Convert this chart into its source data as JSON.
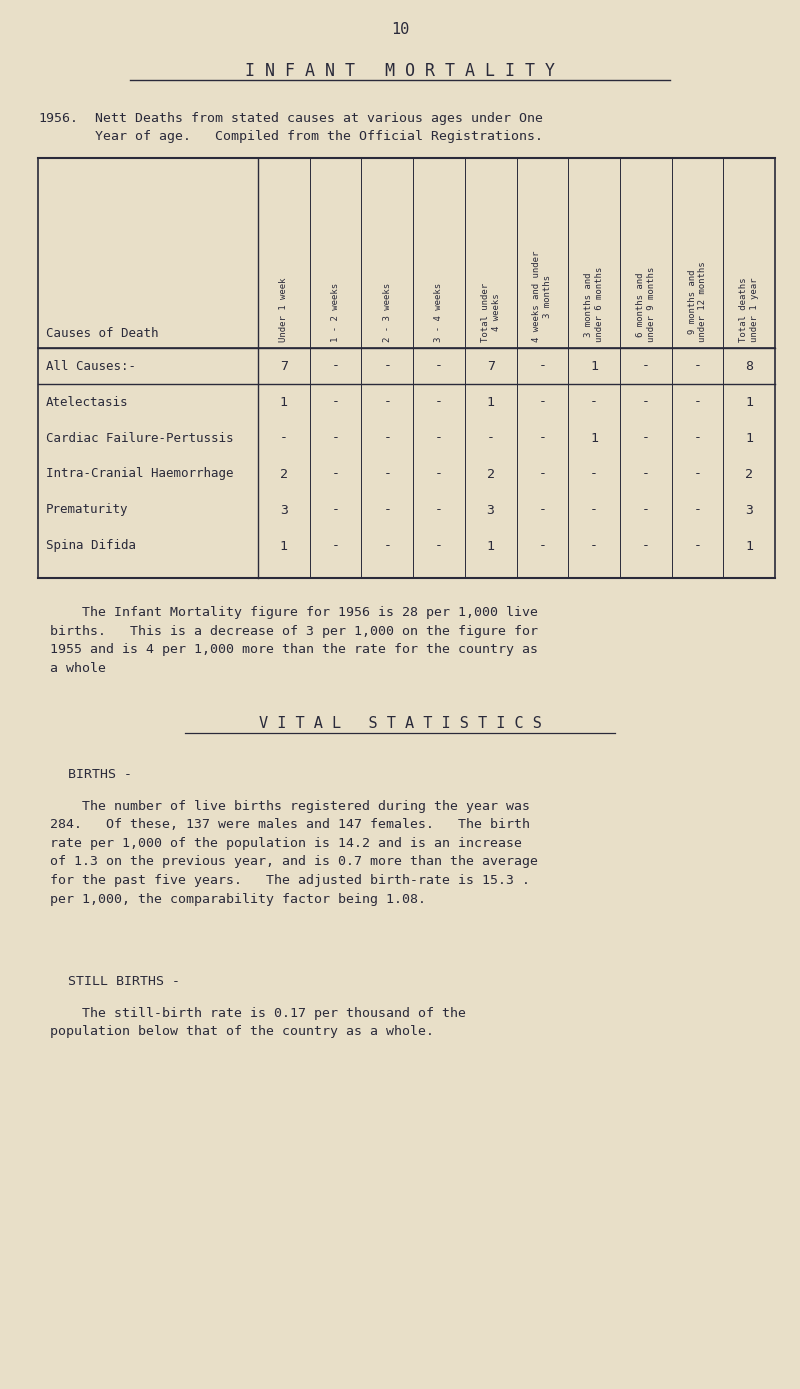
{
  "bg_color": "#e8dfc8",
  "text_color": "#2a2a3a",
  "page_number": "10",
  "title": "I N F A N T   M O R T A L I T Y",
  "col_headers": [
    "Under 1 week",
    "1 - 2 weeks",
    "2 - 3 weeks",
    "3 - 4 weeks",
    "Total under\n4 weeks",
    "4 weeks and under\n3 months",
    "3 months and\nunder 6 months",
    "6 months and\nunder 9 months",
    "9 months and\nunder 12 months",
    "Total deaths\nunder 1 year"
  ],
  "rows": [
    {
      "cause": "All Causes:-",
      "values": [
        "7",
        "-",
        "-",
        "-",
        "7",
        "-",
        "1",
        "-",
        "-",
        "8"
      ],
      "sep_above": true,
      "sep_below": true
    },
    {
      "cause": "Atelectasis",
      "values": [
        "1",
        "-",
        "-",
        "-",
        "1",
        "-",
        "-",
        "-",
        "-",
        "1"
      ],
      "sep_above": false,
      "sep_below": false
    },
    {
      "cause": "Cardiac Failure-Pertussis",
      "values": [
        "-",
        "-",
        "-",
        "-",
        "-",
        "-",
        "1",
        "-",
        "-",
        "1"
      ],
      "sep_above": false,
      "sep_below": false
    },
    {
      "cause": "Intra-Cranial Haemorrhage",
      "values": [
        "2",
        "-",
        "-",
        "-",
        "2",
        "-",
        "-",
        "-",
        "-",
        "2"
      ],
      "sep_above": false,
      "sep_below": false
    },
    {
      "cause": "Prematurity",
      "values": [
        "3",
        "-",
        "-",
        "-",
        "3",
        "-",
        "-",
        "-",
        "-",
        "3"
      ],
      "sep_above": false,
      "sep_below": false
    },
    {
      "cause": "Spina Difida",
      "values": [
        "1",
        "-",
        "-",
        "-",
        "1",
        "-",
        "-",
        "-",
        "-",
        "1"
      ],
      "sep_above": false,
      "sep_below": false
    }
  ],
  "para1_indent": "    The Infant Mortality figure for 1956 is 28 per 1,000 live\nbirths.   This is a decrease of 3 per 1,000 on the figure for\n1955 and is 4 per 1,000 more than the rate for the country as\na whole",
  "vital_stats_title": "V I T A L   S T A T I S T I C S",
  "births_heading": "BIRTHS -",
  "births_para": "    The number of live births registered during the year was\n284.   Of these, 137 were males and 147 females.   The birth\nrate per 1,000 of the population is 14.2 and is an increase\nof 1.3 on the previous year, and is 0.7 more than the average\nfor the past five years.   The adjusted birth-rate is 15.3 .\nper 1,000, the comparability factor being 1.08.",
  "still_births_heading": "STILL BIRTHS -",
  "still_births_para": "    The still-birth rate is 0.17 per thousand of the\npopulation below that of the country as a whole."
}
